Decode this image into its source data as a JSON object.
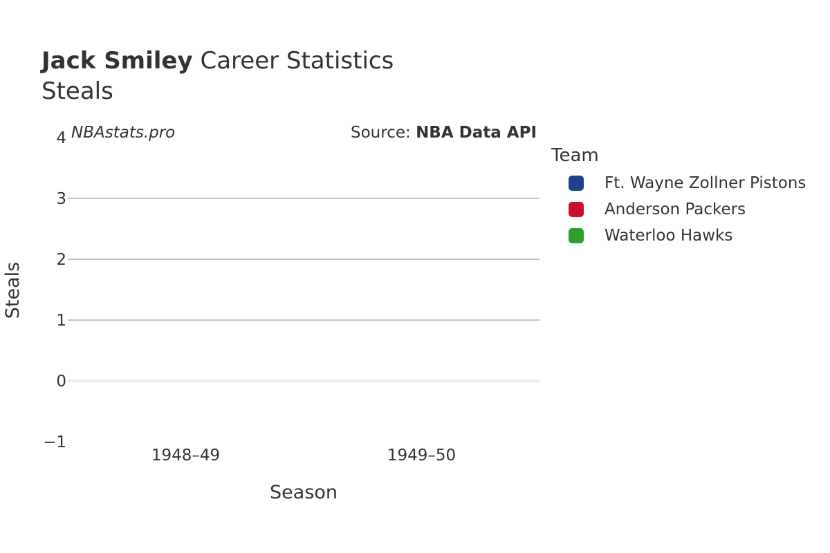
{
  "header": {
    "player_name": "Jack Smiley",
    "title_rest": " Career Statistics",
    "subtitle": "Steals"
  },
  "watermark": "NBAstats.pro",
  "source": {
    "prefix": "Source: ",
    "name": "NBA Data API"
  },
  "legend": {
    "title": "Team",
    "items": [
      {
        "label": "Ft. Wayne Zollner Pistons",
        "color": "#1d428a"
      },
      {
        "label": "Anderson Packers",
        "color": "#c8102e"
      },
      {
        "label": "Waterloo Hawks",
        "color": "#2ca02c"
      }
    ]
  },
  "chart_data": {
    "type": "bar",
    "title": "Jack Smiley Career Statistics",
    "subtitle": "Steals",
    "xlabel": "Season",
    "ylabel": "Steals",
    "categories": [
      "1948–49",
      "1949–50"
    ],
    "yticks": [
      -1,
      0,
      1,
      2,
      3,
      4
    ],
    "ytick_labels": [
      "−1",
      "0",
      "1",
      "2",
      "3",
      "4"
    ],
    "ylim": [
      -1,
      4
    ],
    "grid": true,
    "legend_position": "right",
    "series": [
      {
        "name": "Ft. Wayne Zollner Pistons",
        "values": [
          null,
          null
        ]
      },
      {
        "name": "Anderson Packers",
        "values": [
          null,
          null
        ]
      },
      {
        "name": "Waterloo Hawks",
        "values": [
          null,
          null
        ]
      }
    ]
  }
}
